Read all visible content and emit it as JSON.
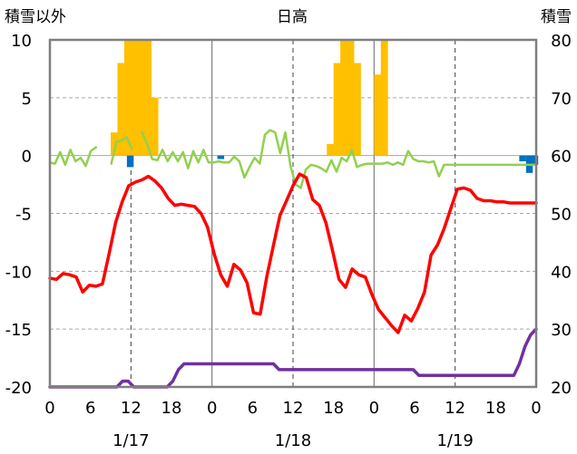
{
  "chart_data": {
    "type": "combo",
    "title": "日高",
    "left_axis": {
      "label": "積雪以外",
      "range": [
        -20,
        10
      ],
      "ticks": [
        10,
        5,
        0,
        -5,
        -10,
        -15,
        -20
      ]
    },
    "right_axis": {
      "label": "積雪",
      "range": [
        20,
        80
      ],
      "ticks": [
        80,
        70,
        60,
        50,
        40,
        30,
        20
      ]
    },
    "x_axis": {
      "hours": [
        "0",
        "6",
        "12",
        "18",
        "0",
        "6",
        "12",
        "18",
        "0",
        "6",
        "12",
        "18",
        "0"
      ],
      "dates": [
        "1/17",
        "1/18",
        "1/19"
      ]
    },
    "series": [
      {
        "name": "",
        "kind": "bar-up",
        "color": "#FFC000",
        "axis": "left",
        "values": [
          0,
          0,
          0,
          0,
          0,
          0,
          0,
          0,
          0,
          2,
          8,
          10,
          10,
          10,
          10,
          5,
          0,
          0,
          0,
          0,
          0,
          0,
          0,
          0,
          0,
          0,
          0,
          0,
          0,
          0,
          0,
          0,
          0,
          0,
          0,
          0,
          0,
          0,
          0,
          0,
          0,
          1,
          8,
          10,
          10,
          8,
          0,
          0,
          7,
          10,
          0,
          0,
          0,
          0,
          0,
          0,
          0,
          0,
          0,
          0,
          0,
          0,
          0,
          0,
          0,
          0,
          0,
          0,
          0,
          0,
          0,
          0,
          0,
          0,
          0,
          0,
          0,
          0,
          0,
          0,
          0,
          0,
          0,
          0,
          0,
          0,
          0,
          0,
          0,
          0,
          0,
          0,
          0,
          0,
          0,
          0,
          0,
          0,
          0,
          0,
          0,
          0,
          0,
          0,
          0,
          0,
          0,
          0,
          0,
          0,
          0
        ]
      },
      {
        "name": "",
        "kind": "bar-down",
        "color": "#0070C0",
        "axis": "left",
        "values": [
          0,
          0,
          0,
          0,
          0,
          0,
          0,
          0,
          0,
          0,
          0,
          0,
          0,
          0,
          0,
          0,
          0,
          0,
          0,
          0,
          0,
          0,
          0,
          0,
          0,
          0,
          0,
          0,
          0,
          0,
          0,
          0,
          0,
          0,
          0,
          0,
          0,
          0,
          0,
          0,
          0,
          0,
          0,
          0,
          0,
          0,
          0,
          0,
          0,
          0,
          0,
          0,
          0,
          0,
          0,
          0,
          0,
          0,
          0,
          0,
          0,
          0,
          0,
          0,
          0,
          0,
          0,
          0,
          0,
          0,
          0,
          0,
          0,
          0,
          0,
          0,
          0,
          0,
          0,
          0,
          0,
          0,
          0,
          0,
          0,
          0,
          0,
          0,
          0,
          0,
          0,
          0,
          0,
          0,
          0,
          0,
          0,
          0,
          0,
          0,
          0,
          0,
          0,
          0,
          0,
          0,
          0,
          0,
          0,
          0,
          0,
          0,
          0,
          0,
          0,
          0,
          0,
          0,
          0,
          0,
          0,
          0,
          0,
          0,
          0,
          0,
          0,
          0,
          0,
          0,
          0
        ]
      },
      {
        "name": "",
        "kind": "line",
        "color": "#92D050",
        "axis": "left",
        "values": [
          -0.6,
          -0.7,
          0.3,
          -0.8,
          0.5,
          -0.5,
          -0.2,
          -0.9,
          0.4,
          0.7,
          null,
          null,
          -0.7,
          1.2,
          1.3,
          1.6,
          0.6,
          null,
          2.0,
          1.0,
          -0.3,
          -0.4,
          0.5,
          -0.5,
          0.3,
          -0.5,
          0.3,
          -1.1,
          0.4,
          -0.6,
          0.5,
          -0.6,
          -0.6,
          -0.5,
          -0.6,
          -0.6,
          -0.1,
          -0.5,
          -1.9,
          -1.0,
          -0.2,
          -0.7,
          1.8,
          2.2,
          2.0,
          0.2,
          2.0,
          -0.9,
          -2.5,
          -2.8,
          -1.2,
          -0.8,
          -0.9,
          -1.1,
          -1.4,
          -0.4,
          -1.4,
          -0.2,
          -0.5,
          0.5,
          -1.0,
          -0.8,
          -0.7,
          -0.7,
          -0.7,
          -0.7,
          -0.6,
          -0.8,
          -0.6,
          -0.8,
          0.4,
          -0.3,
          -0.5,
          -0.5,
          -0.6,
          -0.5,
          -1.8,
          -0.8,
          -0.8,
          -0.8,
          -0.8,
          -0.8,
          -0.8,
          -0.8,
          -0.8,
          -0.8,
          -0.8,
          -0.8,
          -0.8,
          -0.8,
          -0.8,
          -0.8,
          -0.8,
          -0.8,
          -0.8,
          -0.8
        ]
      },
      {
        "name": "",
        "kind": "line",
        "color": "#FF0000",
        "axis": "left",
        "values": [
          -10.6,
          -10.7,
          -10.2,
          -10.3,
          -10.5,
          -11.8,
          -11.2,
          -11.3,
          -11.1,
          -8.5,
          -5.8,
          -4.0,
          -2.6,
          -2.3,
          -2.1,
          -1.8,
          -2.2,
          -2.8,
          -3.7,
          -4.3,
          -4.2,
          -4.3,
          -4.4,
          -5.0,
          -6.2,
          -8.5,
          -10.3,
          -11.3,
          -9.4,
          -9.9,
          -11.0,
          -13.6,
          -13.7,
          -10.5,
          -7.8,
          -5.2,
          -3.9,
          -2.6,
          -1.6,
          -1.9,
          -3.8,
          -4.3,
          -5.8,
          -8.2,
          -10.7,
          -11.4,
          -9.8,
          -10.3,
          -10.5,
          -12.0,
          -13.3,
          -14.0,
          -14.7,
          -15.3,
          -13.8,
          -14.3,
          -13.2,
          -11.8,
          -8.6,
          -7.7,
          -6.3,
          -4.6,
          -2.9,
          -2.8,
          -3.0,
          -3.7,
          -3.9,
          -3.9,
          -4.0,
          -4.0,
          -4.1,
          -4.1,
          -4.1,
          -4.1,
          -4.1
        ]
      },
      {
        "name": "",
        "kind": "line",
        "color": "#7030A0",
        "axis": "right",
        "values": [
          20,
          20,
          20,
          20,
          20,
          20,
          20,
          20,
          20,
          20,
          20,
          20,
          20,
          21,
          21,
          20,
          20,
          20,
          20,
          20,
          20,
          20,
          21,
          23,
          24,
          24,
          24,
          24,
          24,
          24,
          24,
          24,
          24,
          24,
          24,
          24,
          24,
          24,
          24,
          24,
          24,
          23,
          23,
          23,
          23,
          23,
          23,
          23,
          23,
          23,
          23,
          23,
          23,
          23,
          23,
          23,
          23,
          23,
          23,
          23,
          23,
          23,
          23,
          23,
          23,
          23,
          22,
          22,
          22,
          22,
          22,
          22,
          22,
          22,
          22,
          22,
          22,
          22,
          22,
          22,
          22,
          22,
          22,
          22,
          24,
          27,
          29,
          30
        ]
      }
    ]
  }
}
